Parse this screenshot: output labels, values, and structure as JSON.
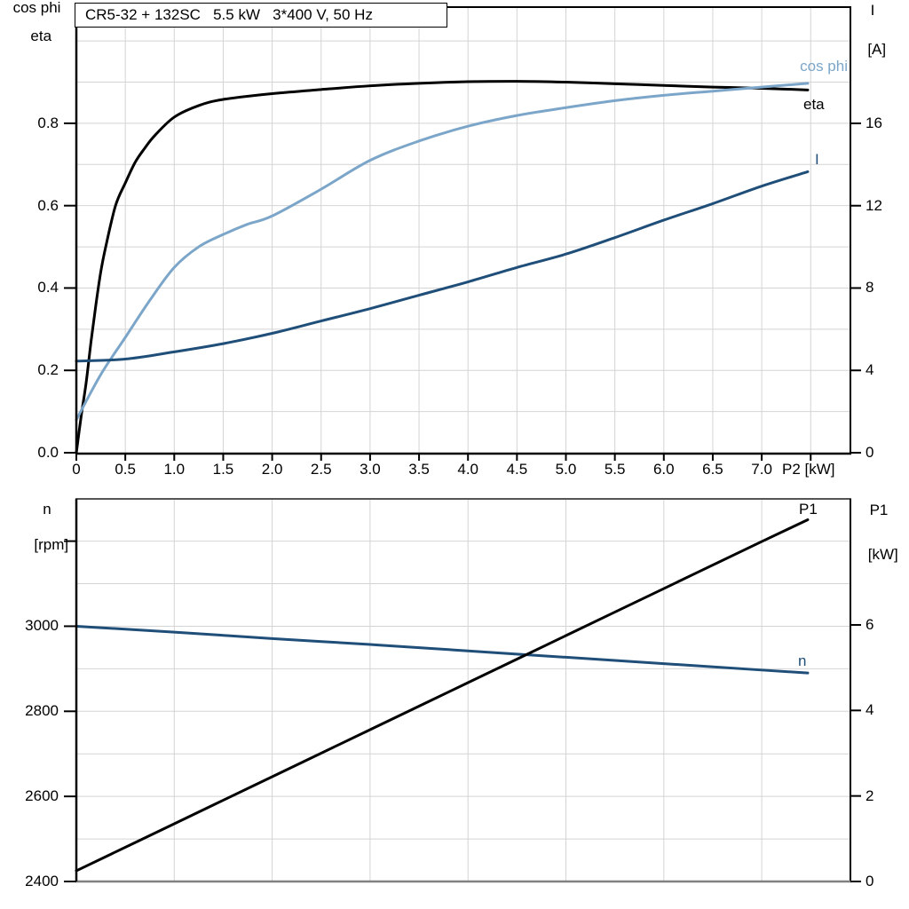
{
  "title": "CR5-32 + 132SC   5.5 kW   3*400 V, 50 Hz",
  "colors": {
    "cos_phi": "#7CA6C9",
    "eta": "#000000",
    "current": "#1F4E79",
    "speed": "#1F4E79",
    "p1": "#000000",
    "grid": "#D4D4D4",
    "axis_black": "#000000",
    "border_top_gray": "#555555",
    "border_bottom_gray": "#808080"
  },
  "top_panel": {
    "left_axis_title_line1": "cos phi",
    "left_axis_title_line2": "eta",
    "right_axis_title_line1": "I",
    "right_axis_title_line2": "[A]",
    "x_axis_title": "P2 [kW]",
    "curve_label_cos_phi": "cos phi",
    "curve_label_eta": "eta",
    "curve_label_current": "I",
    "x_ticks": [
      {
        "v": 0,
        "l": "0"
      },
      {
        "v": 0.5,
        "l": "0.5"
      },
      {
        "v": 1,
        "l": "1.0"
      },
      {
        "v": 1.5,
        "l": "1.5"
      },
      {
        "v": 2,
        "l": "2.0"
      },
      {
        "v": 2.5,
        "l": "2.5"
      },
      {
        "v": 3,
        "l": "3.0"
      },
      {
        "v": 3.5,
        "l": "3.5"
      },
      {
        "v": 4,
        "l": "4.0"
      },
      {
        "v": 4.5,
        "l": "4.5"
      },
      {
        "v": 5,
        "l": "5.0"
      },
      {
        "v": 5.5,
        "l": "5.5"
      },
      {
        "v": 6,
        "l": "6.0"
      },
      {
        "v": 6.5,
        "l": "6.5"
      },
      {
        "v": 7,
        "l": "7.0"
      },
      {
        "v": 7.5,
        "l": ""
      }
    ],
    "left_ticks": [
      {
        "v": 0,
        "l": "0.0"
      },
      {
        "v": 0.2,
        "l": "0.2"
      },
      {
        "v": 0.4,
        "l": "0.4"
      },
      {
        "v": 0.6,
        "l": "0.6"
      },
      {
        "v": 0.8,
        "l": "0.8"
      }
    ],
    "right_ticks": [
      {
        "v": 0,
        "l": "0"
      },
      {
        "v": 4,
        "l": "4"
      },
      {
        "v": 8,
        "l": "8"
      },
      {
        "v": 12,
        "l": "12"
      },
      {
        "v": 16,
        "l": "16"
      }
    ]
  },
  "bottom_panel": {
    "left_axis_title_line1": "n",
    "left_axis_title_line2": "[rpm]",
    "right_axis_title_line1": "P1",
    "right_axis_title_line2": "[kW]",
    "curve_label_p1": "P1",
    "curve_label_speed": "n",
    "left_ticks": [
      {
        "v": 2400,
        "l": "2400"
      },
      {
        "v": 2600,
        "l": "2600"
      },
      {
        "v": 2800,
        "l": "2800"
      },
      {
        "v": 3000,
        "l": "3000"
      },
      {
        "v": 3200,
        "l": ""
      }
    ],
    "right_ticks": [
      {
        "v": 0,
        "l": "0"
      },
      {
        "v": 2,
        "l": "2"
      },
      {
        "v": 4,
        "l": "4"
      },
      {
        "v": 6,
        "l": "6"
      }
    ]
  },
  "chart_data": [
    {
      "type": "line",
      "title": "CR5-32 + 132SC   5.5 kW   3*400 V, 50 Hz",
      "xlabel": "P2 [kW]",
      "ylabel_left": "cos phi / eta",
      "ylabel_right": "I [A]",
      "xlim": [
        0,
        7.9
      ],
      "ylim_left": [
        0,
        1.08
      ],
      "ylim_right": [
        0,
        21.7
      ],
      "grid": true,
      "x_tick_step": 0.5,
      "series": [
        {
          "name": "eta",
          "axis": "left",
          "color": "#000000",
          "points": [
            [
              0,
              0
            ],
            [
              0.05,
              0.09
            ],
            [
              0.1,
              0.17
            ],
            [
              0.15,
              0.27
            ],
            [
              0.2,
              0.36
            ],
            [
              0.25,
              0.44
            ],
            [
              0.3,
              0.5
            ],
            [
              0.4,
              0.6
            ],
            [
              0.5,
              0.655
            ],
            [
              0.6,
              0.705
            ],
            [
              0.7,
              0.74
            ],
            [
              0.8,
              0.77
            ],
            [
              1,
              0.815
            ],
            [
              1.25,
              0.843
            ],
            [
              1.5,
              0.858
            ],
            [
              2,
              0.872
            ],
            [
              2.5,
              0.882
            ],
            [
              3,
              0.891
            ],
            [
              3.5,
              0.897
            ],
            [
              4,
              0.901
            ],
            [
              4.5,
              0.902
            ],
            [
              5,
              0.9
            ],
            [
              5.5,
              0.896
            ],
            [
              6,
              0.892
            ],
            [
              6.5,
              0.888
            ],
            [
              7,
              0.885
            ],
            [
              7.47,
              0.881
            ]
          ]
        },
        {
          "name": "cos phi",
          "axis": "left",
          "color": "#7CA6C9",
          "points": [
            [
              0,
              0.08
            ],
            [
              0.25,
              0.19
            ],
            [
              0.5,
              0.28
            ],
            [
              0.75,
              0.37
            ],
            [
              1,
              0.45
            ],
            [
              1.25,
              0.5
            ],
            [
              1.5,
              0.53
            ],
            [
              1.75,
              0.555
            ],
            [
              2,
              0.575
            ],
            [
              2.5,
              0.64
            ],
            [
              3,
              0.71
            ],
            [
              3.5,
              0.757
            ],
            [
              4,
              0.793
            ],
            [
              4.5,
              0.819
            ],
            [
              5,
              0.838
            ],
            [
              5.5,
              0.855
            ],
            [
              6,
              0.868
            ],
            [
              6.5,
              0.878
            ],
            [
              7,
              0.888
            ],
            [
              7.47,
              0.897
            ]
          ]
        },
        {
          "name": "I",
          "axis": "right",
          "color": "#1F4E79",
          "points": [
            [
              0,
              4.45
            ],
            [
              0.5,
              4.55
            ],
            [
              1,
              4.9
            ],
            [
              1.5,
              5.3
            ],
            [
              2,
              5.8
            ],
            [
              2.5,
              6.4
            ],
            [
              3,
              7.0
            ],
            [
              3.5,
              7.65
            ],
            [
              4,
              8.3
            ],
            [
              4.5,
              9.0
            ],
            [
              5,
              9.65
            ],
            [
              5.5,
              10.45
            ],
            [
              6,
              11.3
            ],
            [
              6.5,
              12.1
            ],
            [
              7,
              12.95
            ],
            [
              7.47,
              13.65
            ]
          ]
        }
      ]
    },
    {
      "type": "line",
      "title": "",
      "xlabel": "",
      "ylabel_left": "n [rpm]",
      "ylabel_right": "P1 [kW]",
      "xlim": [
        0,
        7.9
      ],
      "ylim_left": [
        2400,
        3300
      ],
      "ylim_right": [
        0,
        8.95
      ],
      "grid": true,
      "x_tick_step": 1,
      "series": [
        {
          "name": "n",
          "axis": "left",
          "color": "#1F4E79",
          "points": [
            [
              0,
              3000
            ],
            [
              1,
              2986
            ],
            [
              2,
              2971
            ],
            [
              3,
              2957
            ],
            [
              4,
              2942
            ],
            [
              5,
              2927
            ],
            [
              6,
              2912
            ],
            [
              7,
              2897
            ],
            [
              7.47,
              2890
            ]
          ]
        },
        {
          "name": "P1",
          "axis": "right",
          "color": "#000000",
          "points": [
            [
              0,
              0.25
            ],
            [
              1,
              1.35
            ],
            [
              2,
              2.45
            ],
            [
              3,
              3.55
            ],
            [
              4,
              4.65
            ],
            [
              5,
              5.75
            ],
            [
              6,
              6.85
            ],
            [
              7,
              7.95
            ],
            [
              7.47,
              8.46
            ]
          ]
        }
      ]
    }
  ]
}
